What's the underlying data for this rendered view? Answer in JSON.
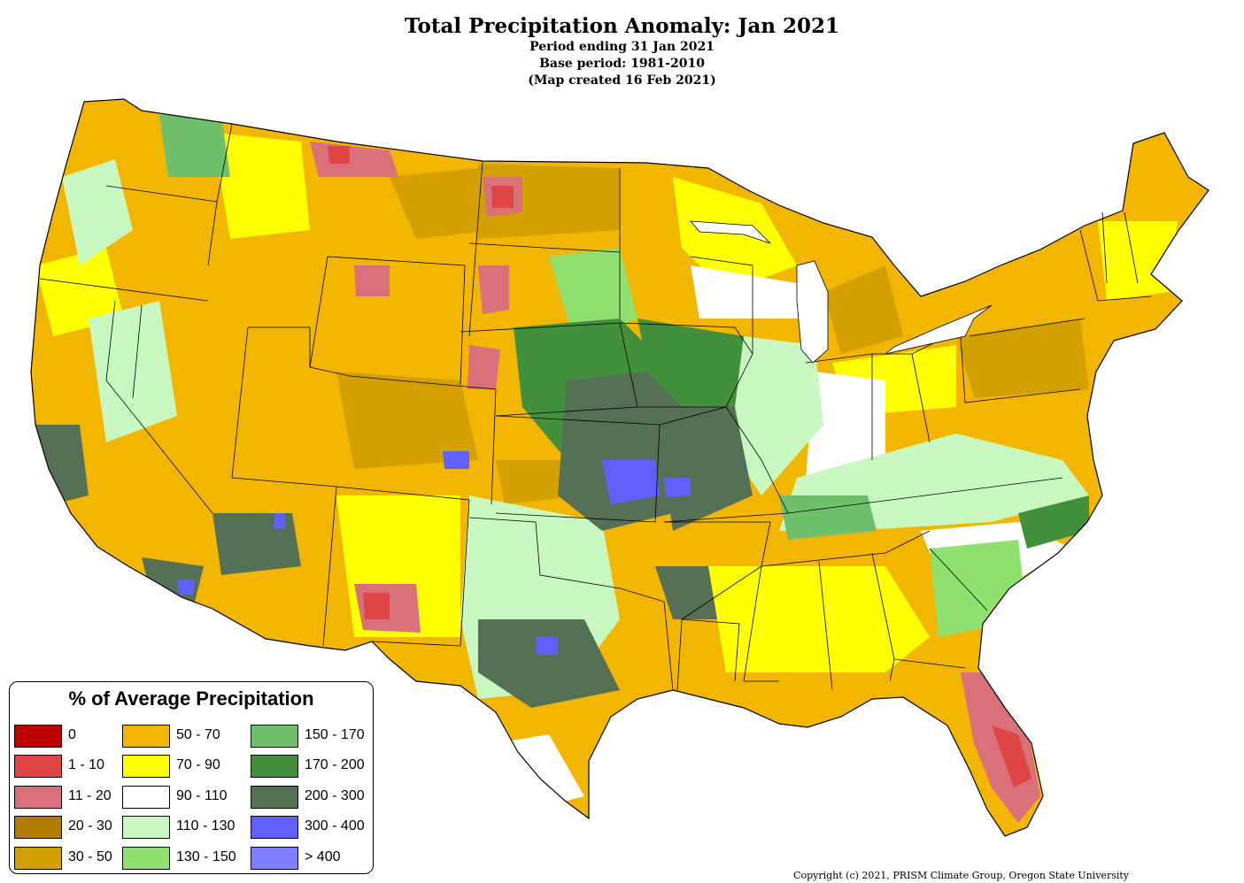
{
  "title": "Total Precipitation Anomaly: Jan 2021",
  "subtitle_lines": [
    "Period ending 31 Jan 2021",
    "Base period: 1981-2010",
    "(Map created 16 Feb 2021)"
  ],
  "legend": {
    "title": "% of Average Precipitation",
    "items": [
      {
        "label": "0",
        "color": "#c00000"
      },
      {
        "label": "1 - 10",
        "color": "#e04545"
      },
      {
        "label": "11 - 20",
        "color": "#d9707a"
      },
      {
        "label": "20 - 30",
        "color": "#b07d00"
      },
      {
        "label": "30 - 50",
        "color": "#d4a000"
      },
      {
        "label": "50 - 70",
        "color": "#f2b600"
      },
      {
        "label": "70 - 90",
        "color": "#ffff00"
      },
      {
        "label": "90 - 110",
        "color": "#ffffff"
      },
      {
        "label": "110 - 130",
        "color": "#c8f8c0"
      },
      {
        "label": "130 - 150",
        "color": "#90e070"
      },
      {
        "label": "150 - 170",
        "color": "#6ec06a"
      },
      {
        "label": "170 - 200",
        "color": "#43903c"
      },
      {
        "label": "200 - 300",
        "color": "#557055"
      },
      {
        "label": "300 - 400",
        "color": "#6060ff"
      },
      {
        "label": "> 400",
        "color": "#8080ff"
      }
    ]
  },
  "copyright": "Copyright (c) 2021, PRISM Climate Group, Oregon State University"
}
